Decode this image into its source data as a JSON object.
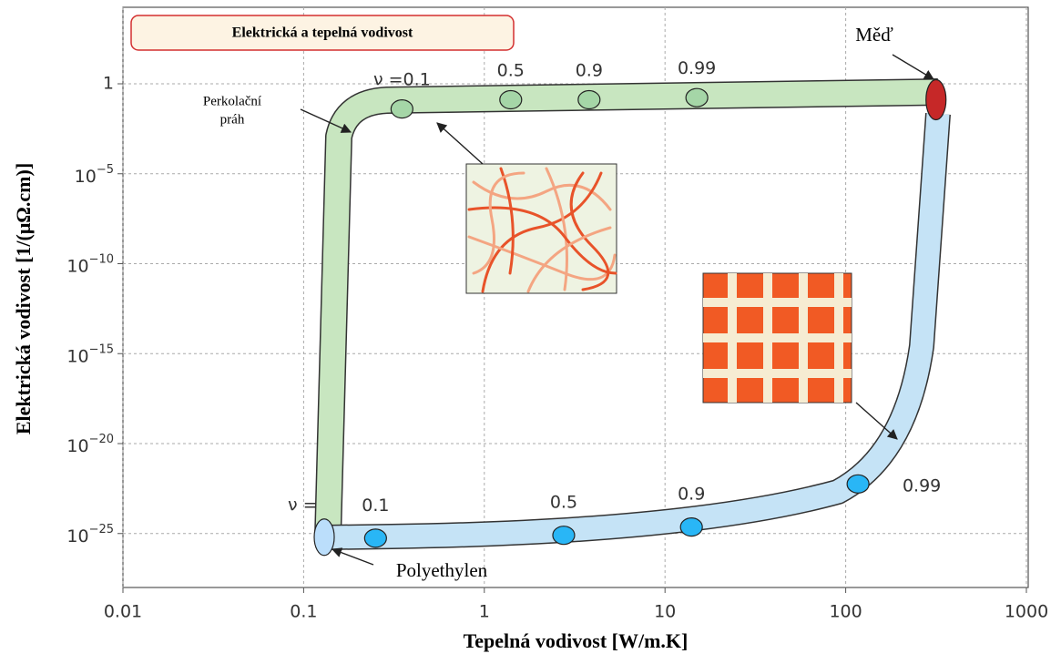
{
  "chart_data": {
    "type": "scatter",
    "title": "Elektrická a tepelná vodivost",
    "x_label": "Tepelná vodivost [W/m.K]",
    "y_label": "Elektrická vodivost [1/(μΩ.cm)]",
    "log_x": true,
    "log_y": true,
    "grid": true,
    "xlim": [
      0.01,
      1000
    ],
    "ylim": [
      1e-28,
      10000
    ],
    "xticks": [
      0.01,
      0.1,
      1,
      10,
      100,
      1000
    ],
    "yticks": [
      1,
      {
        "value": 1e-05,
        "label": "10",
        "exponent": "−5"
      },
      {
        "value": 1e-10,
        "label": "10",
        "exponent": "−10"
      },
      {
        "value": 1e-15,
        "label": "10",
        "exponent": "−15"
      },
      {
        "value": 1e-20,
        "label": "10",
        "exponent": "−20"
      },
      {
        "value": 1e-25,
        "label": "10",
        "exponent": "−25"
      }
    ],
    "series": [
      {
        "color": "#a5d6a7",
        "label_prefix": "ν =",
        "x": [
          0.35,
          1.4,
          3.8,
          15
        ],
        "values": [
          0.04,
          0.13,
          0.13,
          0.17
        ],
        "labels": [
          "0.1",
          "0.5",
          "0.9",
          "0.99"
        ]
      },
      {
        "color": "#29b6f6",
        "label_prefix": "ν =",
        "x": [
          0.25,
          2.75,
          14,
          117
        ],
        "values": [
          5.5e-26,
          8e-26,
          2.3e-25,
          5.7e-23
        ],
        "labels": [
          "0.1",
          "0.5",
          "0.9",
          "0.99"
        ]
      }
    ],
    "annotations": {
      "copper": {
        "text": "Měď",
        "x": 316,
        "y": 0.13,
        "color": "#c62828"
      },
      "polyethylene": {
        "text": "Polyethylen",
        "x": 0.13,
        "y": 6.3e-26,
        "color": "#bbdefb"
      },
      "threshold": [
        "Perkolační",
        "práh"
      ]
    }
  }
}
